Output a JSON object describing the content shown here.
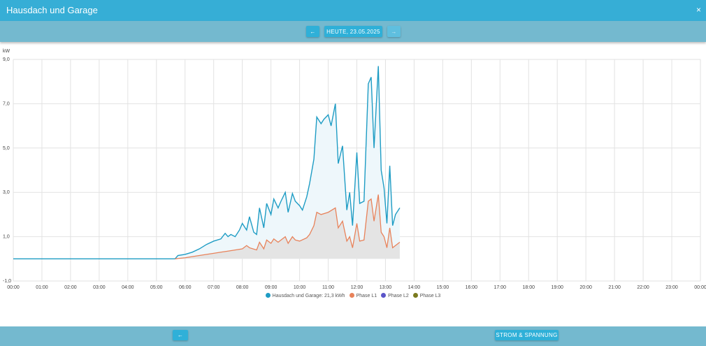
{
  "window": {
    "title": "Hausdach und Garage",
    "close_glyph": "×"
  },
  "nav": {
    "date_label": "HEUTE, 23.05.2025",
    "prev_glyph": "←",
    "next_glyph": "→"
  },
  "footer": {
    "back_glyph": "←",
    "strom_label": "STROM & SPANNUNG"
  },
  "colors": {
    "accent": "#36aed6",
    "total": "#1e9cc4",
    "phase_l1": "#e8825a",
    "phase_l2": "#5b55c9",
    "phase_l3": "#7a7a1e"
  },
  "chart_data": {
    "type": "line",
    "ylabel": "kW",
    "ylim": [
      -1,
      9
    ],
    "yticks": [
      "9,0",
      "7,0",
      "5,0",
      "3,0",
      "1,0",
      "-1,0"
    ],
    "ytick_values": [
      9,
      7,
      5,
      3,
      1,
      -1
    ],
    "xlim": [
      0,
      24
    ],
    "xticks": [
      "00:00",
      "01:00",
      "02:00",
      "03:00",
      "04:00",
      "05:00",
      "06:00",
      "07:00",
      "08:00",
      "09:00",
      "10:00",
      "11:00",
      "12:00",
      "13:00",
      "14:00",
      "15:00",
      "16:00",
      "17:00",
      "18:00",
      "19:00",
      "20:00",
      "21:00",
      "22:00",
      "23:00",
      "00:00"
    ],
    "grid": true,
    "legend_position": "bottom",
    "series": [
      {
        "name": "Hausdach und Garage: 21,3 kWh",
        "x": [
          0,
          5.65,
          5.75,
          6.0,
          6.25,
          6.5,
          6.75,
          7.0,
          7.25,
          7.4,
          7.5,
          7.6,
          7.75,
          7.9,
          8.0,
          8.15,
          8.25,
          8.4,
          8.5,
          8.6,
          8.75,
          8.85,
          9.0,
          9.1,
          9.25,
          9.35,
          9.5,
          9.6,
          9.75,
          9.85,
          10.0,
          10.1,
          10.25,
          10.35,
          10.5,
          10.6,
          10.75,
          10.85,
          11.0,
          11.1,
          11.25,
          11.35,
          11.5,
          11.65,
          11.75,
          11.85,
          12.0,
          12.1,
          12.25,
          12.4,
          12.5,
          12.6,
          12.75,
          12.85,
          12.95,
          13.05,
          13.15,
          13.25,
          13.35,
          13.5
        ],
        "y": [
          0,
          0,
          0.15,
          0.2,
          0.3,
          0.45,
          0.65,
          0.8,
          0.9,
          1.15,
          1.0,
          1.1,
          1.0,
          1.3,
          1.6,
          1.3,
          1.9,
          1.2,
          1.1,
          2.3,
          1.4,
          2.5,
          2.0,
          2.7,
          2.3,
          2.6,
          3.0,
          2.1,
          2.95,
          2.6,
          2.4,
          2.2,
          2.8,
          3.4,
          4.5,
          6.4,
          6.1,
          6.3,
          6.5,
          6.0,
          7.0,
          4.3,
          5.1,
          2.2,
          3.0,
          1.5,
          4.8,
          2.5,
          2.6,
          7.9,
          8.2,
          5.0,
          8.7,
          4.0,
          3.2,
          1.6,
          4.2,
          1.5,
          2.0,
          2.3
        ]
      },
      {
        "name": "Phase L1",
        "x": [
          5.65,
          6.0,
          6.5,
          7.0,
          7.25,
          7.5,
          7.75,
          8.0,
          8.15,
          8.25,
          8.5,
          8.6,
          8.75,
          8.85,
          9.0,
          9.1,
          9.25,
          9.35,
          9.5,
          9.6,
          9.75,
          9.85,
          10.0,
          10.25,
          10.35,
          10.5,
          10.6,
          10.75,
          11.0,
          11.25,
          11.35,
          11.5,
          11.65,
          11.75,
          11.85,
          12.0,
          12.1,
          12.25,
          12.4,
          12.5,
          12.6,
          12.75,
          12.85,
          12.95,
          13.05,
          13.15,
          13.25,
          13.35,
          13.5
        ],
        "y": [
          0,
          0.05,
          0.15,
          0.25,
          0.3,
          0.35,
          0.4,
          0.45,
          0.6,
          0.5,
          0.4,
          0.75,
          0.45,
          0.85,
          0.7,
          0.9,
          0.75,
          0.85,
          1.0,
          0.7,
          1.0,
          0.85,
          0.8,
          0.95,
          1.1,
          1.5,
          2.1,
          2.0,
          2.1,
          2.3,
          1.4,
          1.7,
          0.8,
          1.0,
          0.5,
          1.6,
          0.8,
          0.85,
          2.6,
          2.7,
          1.7,
          2.9,
          1.2,
          1.0,
          0.5,
          1.4,
          0.5,
          0.6,
          0.75
        ]
      },
      {
        "name": "Phase L2",
        "x": [],
        "y": []
      },
      {
        "name": "Phase L3",
        "x": [],
        "y": []
      }
    ]
  }
}
